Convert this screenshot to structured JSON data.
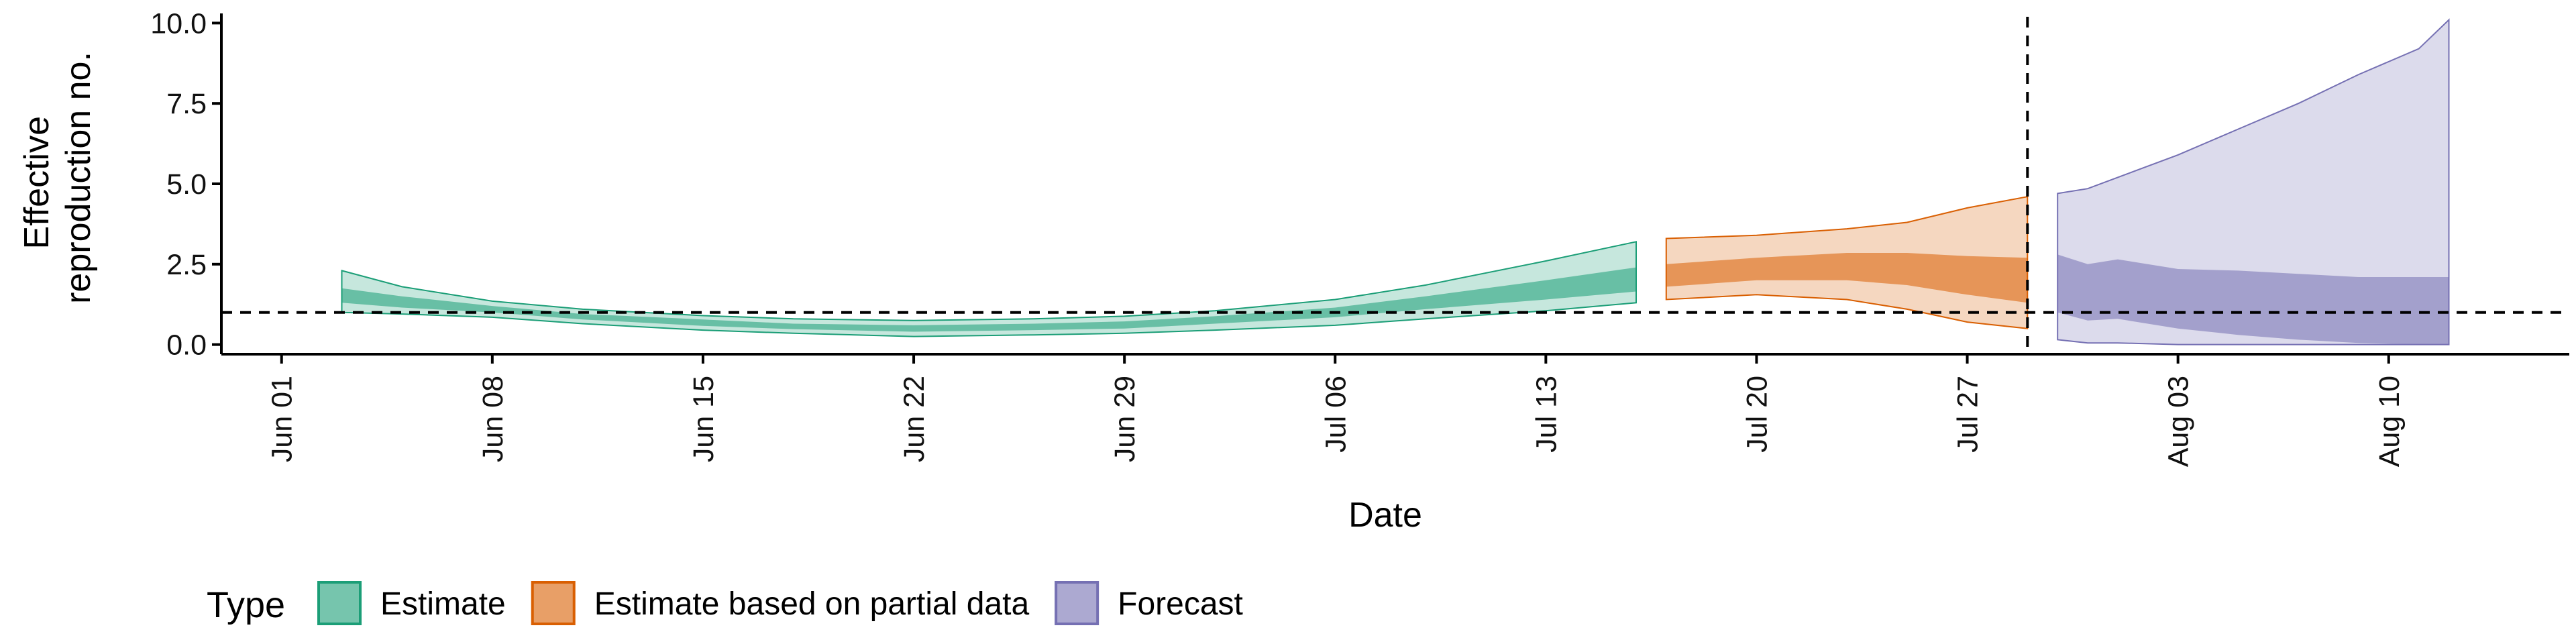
{
  "chart_data": {
    "type": "area",
    "xlabel": "Date",
    "ylabel_lines": [
      "Effective",
      "reproduction no."
    ],
    "ylim": [
      -0.3,
      10.3
    ],
    "yticks": [
      0,
      2.5,
      5,
      7.5,
      10
    ],
    "ytick_labels": [
      "0.0",
      "2.5",
      "5.0",
      "7.5",
      "10.0"
    ],
    "xlim": [
      "2020-05-30",
      "2020-08-16"
    ],
    "xticks": [
      "2020-06-01",
      "2020-06-08",
      "2020-06-15",
      "2020-06-22",
      "2020-06-29",
      "2020-07-06",
      "2020-07-13",
      "2020-07-20",
      "2020-07-27",
      "2020-08-03",
      "2020-08-10"
    ],
    "xtick_labels": [
      "Jun 01",
      "Jun 08",
      "Jun 15",
      "Jun 22",
      "Jun 29",
      "Jul 06",
      "Jul 13",
      "Jul 20",
      "Jul 27",
      "Aug 03",
      "Aug 10"
    ],
    "reference_line_y": 1,
    "forecast_start_line": "2020-07-29",
    "legend_title": "Type",
    "legend_position": "bottom",
    "series": [
      {
        "name": "Estimate",
        "color": "#1b9e77",
        "points": [
          {
            "date": "2020-06-03",
            "lower90": 1.0,
            "lower50": 1.3,
            "upper50": 1.75,
            "upper90": 2.3
          },
          {
            "date": "2020-06-05",
            "lower90": 0.95,
            "lower50": 1.15,
            "upper50": 1.5,
            "upper90": 1.8
          },
          {
            "date": "2020-06-08",
            "lower90": 0.85,
            "lower50": 1.0,
            "upper50": 1.2,
            "upper90": 1.35
          },
          {
            "date": "2020-06-11",
            "lower90": 0.65,
            "lower50": 0.78,
            "upper50": 0.95,
            "upper90": 1.1
          },
          {
            "date": "2020-06-15",
            "lower90": 0.45,
            "lower50": 0.58,
            "upper50": 0.78,
            "upper90": 0.9
          },
          {
            "date": "2020-06-18",
            "lower90": 0.35,
            "lower50": 0.48,
            "upper50": 0.65,
            "upper90": 0.8
          },
          {
            "date": "2020-06-22",
            "lower90": 0.25,
            "lower50": 0.4,
            "upper50": 0.6,
            "upper90": 0.75
          },
          {
            "date": "2020-06-26",
            "lower90": 0.3,
            "lower50": 0.45,
            "upper50": 0.65,
            "upper90": 0.8
          },
          {
            "date": "2020-06-29",
            "lower90": 0.35,
            "lower50": 0.5,
            "upper50": 0.72,
            "upper90": 0.88
          },
          {
            "date": "2020-07-02",
            "lower90": 0.45,
            "lower50": 0.65,
            "upper50": 0.88,
            "upper90": 1.05
          },
          {
            "date": "2020-07-06",
            "lower90": 0.6,
            "lower50": 0.85,
            "upper50": 1.15,
            "upper90": 1.4
          },
          {
            "date": "2020-07-09",
            "lower90": 0.8,
            "lower50": 1.1,
            "upper50": 1.5,
            "upper90": 1.85
          },
          {
            "date": "2020-07-13",
            "lower90": 1.05,
            "lower50": 1.4,
            "upper50": 2.0,
            "upper90": 2.6
          },
          {
            "date": "2020-07-16",
            "lower90": 1.3,
            "lower50": 1.65,
            "upper50": 2.4,
            "upper90": 3.2
          }
        ]
      },
      {
        "name": "Estimate based on partial data",
        "color": "#d95f02",
        "points": [
          {
            "date": "2020-07-17",
            "lower90": 1.4,
            "lower50": 1.8,
            "upper50": 2.5,
            "upper90": 3.3
          },
          {
            "date": "2020-07-20",
            "lower90": 1.55,
            "lower50": 2.0,
            "upper50": 2.7,
            "upper90": 3.4
          },
          {
            "date": "2020-07-23",
            "lower90": 1.4,
            "lower50": 2.0,
            "upper50": 2.85,
            "upper90": 3.6
          },
          {
            "date": "2020-07-25",
            "lower90": 1.1,
            "lower50": 1.85,
            "upper50": 2.85,
            "upper90": 3.8
          },
          {
            "date": "2020-07-27",
            "lower90": 0.7,
            "lower50": 1.55,
            "upper50": 2.75,
            "upper90": 4.25
          },
          {
            "date": "2020-07-29",
            "lower90": 0.5,
            "lower50": 1.3,
            "upper50": 2.7,
            "upper90": 4.6
          }
        ]
      },
      {
        "name": "Forecast",
        "color": "#7570b3",
        "points": [
          {
            "date": "2020-07-30",
            "lower90": 0.15,
            "lower50": 1.0,
            "upper50": 2.8,
            "upper90": 4.7
          },
          {
            "date": "2020-07-31",
            "lower90": 0.05,
            "lower50": 0.75,
            "upper50": 2.5,
            "upper90": 4.85
          },
          {
            "date": "2020-08-01",
            "lower90": 0.05,
            "lower50": 0.8,
            "upper50": 2.65,
            "upper90": 5.2
          },
          {
            "date": "2020-08-03",
            "lower90": 0.0,
            "lower50": 0.5,
            "upper50": 2.35,
            "upper90": 5.9
          },
          {
            "date": "2020-08-05",
            "lower90": 0.0,
            "lower50": 0.3,
            "upper50": 2.3,
            "upper90": 6.7
          },
          {
            "date": "2020-08-07",
            "lower90": 0.0,
            "lower50": 0.15,
            "upper50": 2.2,
            "upper90": 7.5
          },
          {
            "date": "2020-08-09",
            "lower90": 0.0,
            "lower50": 0.05,
            "upper50": 2.1,
            "upper90": 8.4
          },
          {
            "date": "2020-08-11",
            "lower90": 0.0,
            "lower50": 0.0,
            "upper50": 2.1,
            "upper90": 9.2
          },
          {
            "date": "2020-08-12",
            "lower90": 0.0,
            "lower50": 0.0,
            "upper50": 2.1,
            "upper90": 10.1
          }
        ]
      }
    ]
  }
}
